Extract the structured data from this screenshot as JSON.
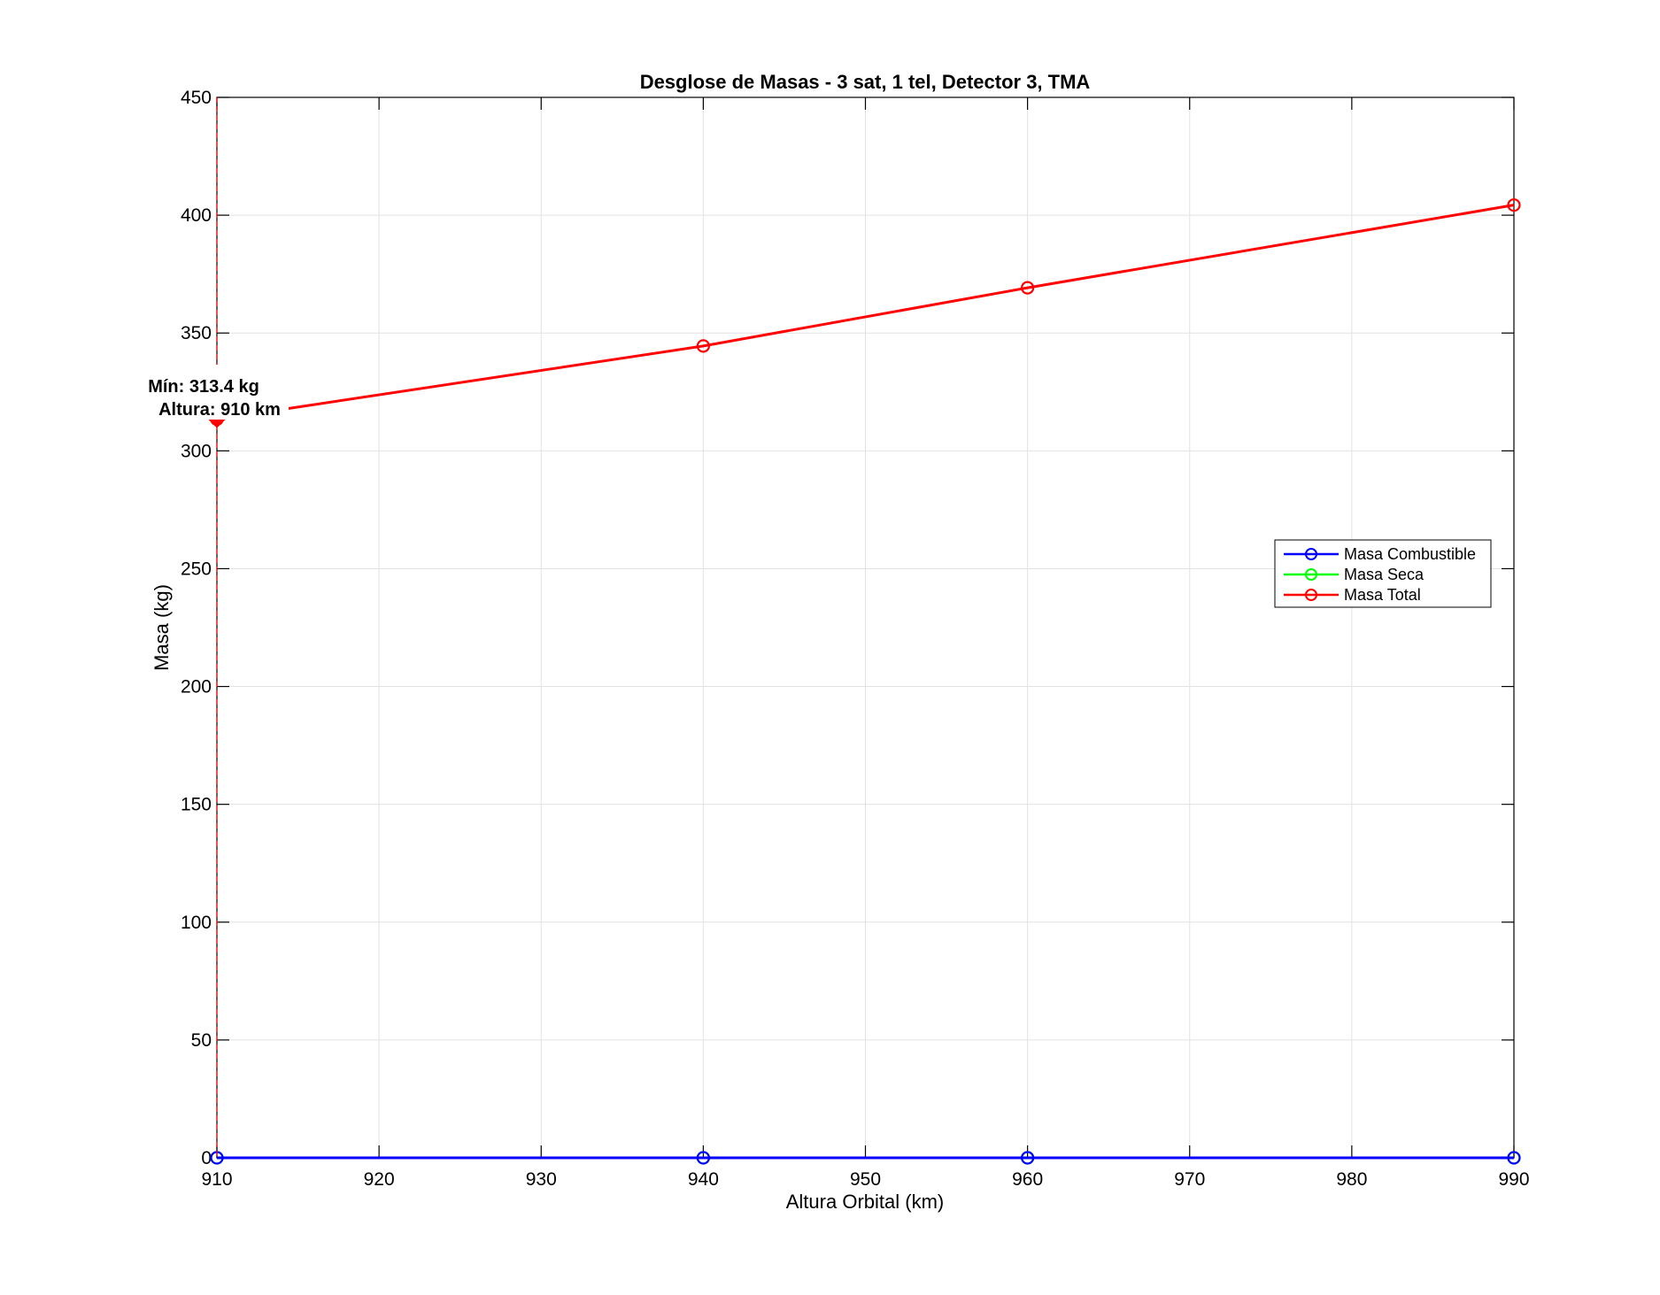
{
  "chart_data": {
    "type": "line",
    "title": "Desglose de Masas - 3 sat, 1 tel, Detector 3, TMA",
    "xlabel": "Altura Orbital (km)",
    "ylabel": "Masa (kg)",
    "xlim": [
      910,
      990
    ],
    "ylim": [
      0,
      450
    ],
    "x_ticks": [
      910,
      920,
      930,
      940,
      950,
      960,
      970,
      980,
      990
    ],
    "y_ticks": [
      0,
      50,
      100,
      150,
      200,
      250,
      300,
      350,
      400,
      450
    ],
    "x_tick_labels": [
      "910",
      "920",
      "930",
      "940",
      "950",
      "960",
      "970",
      "980",
      "990"
    ],
    "y_tick_labels": [
      "0",
      "50",
      "100",
      "150",
      "200",
      "250",
      "300",
      "350",
      "400",
      "450"
    ],
    "grid": true,
    "legend_position": "east",
    "x": [
      910,
      940,
      960,
      990
    ],
    "series": [
      {
        "name": "Masa Combustible",
        "color": "#0000ff",
        "values": [
          0,
          0,
          0,
          0
        ],
        "marker": "circle"
      },
      {
        "name": "Masa Seca",
        "color": "#00ff00",
        "values": [
          0,
          0,
          0,
          0
        ],
        "marker": "circle"
      },
      {
        "name": "Masa Total",
        "color": "#ff0000",
        "values": [
          313.4,
          344.5,
          369.2,
          404.3
        ],
        "marker": "circle"
      }
    ],
    "min_marker": {
      "x": 910,
      "y": 313.4,
      "color": "#ff0000",
      "vline_color": "#ff0000"
    },
    "annotation": {
      "line1": "Mín: 313.4 kg",
      "line2": "Altura: 910 km",
      "anchor_x": 910,
      "anchor_y": 313.4
    }
  }
}
